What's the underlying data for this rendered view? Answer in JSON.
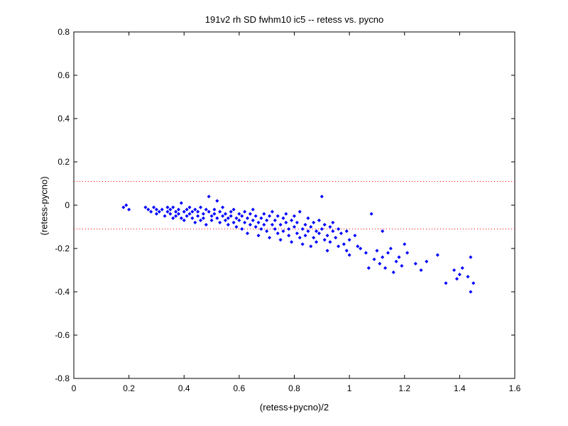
{
  "chart_data": {
    "type": "scatter",
    "title": "191v2 rh SD fwhm10 ic5 -- retess vs. pycno",
    "xlabel": "(retess+pycno)/2",
    "ylabel": "(retess-pycno)",
    "xlim": [
      0,
      1.6
    ],
    "ylim": [
      -0.8,
      0.8
    ],
    "xticks": [
      0,
      0.2,
      0.4,
      0.6,
      0.8,
      1,
      1.2,
      1.4,
      1.6
    ],
    "yticks": [
      -0.8,
      -0.6,
      -0.4,
      -0.2,
      0,
      0.2,
      0.4,
      0.6,
      0.8
    ],
    "xtick_labels": [
      "0",
      "0.2",
      "0.4",
      "0.6",
      "0.8",
      "1",
      "1.2",
      "1.4",
      "1.6"
    ],
    "ytick_labels": [
      "-0.8",
      "-0.6",
      "-0.4",
      "-0.2",
      "0",
      "0.2",
      "0.4",
      "0.6",
      "0.8"
    ],
    "grid": false,
    "point_color": "#0000ff",
    "reference_line_color": "#ff0000",
    "reference_lines_y": [
      0.11,
      -0.11
    ],
    "series": [
      {
        "points": [
          [
            0.18,
            -0.01
          ],
          [
            0.19,
            0.0
          ],
          [
            0.2,
            -0.02
          ],
          [
            0.26,
            -0.01
          ],
          [
            0.27,
            -0.02
          ],
          [
            0.28,
            -0.03
          ],
          [
            0.29,
            -0.01
          ],
          [
            0.3,
            -0.02
          ],
          [
            0.3,
            -0.04
          ],
          [
            0.31,
            -0.03
          ],
          [
            0.32,
            -0.02
          ],
          [
            0.33,
            -0.05
          ],
          [
            0.34,
            -0.01
          ],
          [
            0.34,
            -0.03
          ],
          [
            0.35,
            -0.04
          ],
          [
            0.35,
            -0.02
          ],
          [
            0.36,
            -0.06
          ],
          [
            0.36,
            -0.01
          ],
          [
            0.37,
            -0.03
          ],
          [
            0.37,
            -0.05
          ],
          [
            0.38,
            -0.02
          ],
          [
            0.38,
            -0.04
          ],
          [
            0.39,
            0.01
          ],
          [
            0.39,
            -0.06
          ],
          [
            0.4,
            -0.03
          ],
          [
            0.4,
            -0.07
          ],
          [
            0.41,
            -0.02
          ],
          [
            0.41,
            -0.05
          ],
          [
            0.42,
            -0.04
          ],
          [
            0.42,
            -0.01
          ],
          [
            0.43,
            -0.06
          ],
          [
            0.43,
            -0.03
          ],
          [
            0.44,
            -0.08
          ],
          [
            0.44,
            -0.02
          ],
          [
            0.45,
            -0.05
          ],
          [
            0.45,
            -0.03
          ],
          [
            0.46,
            -0.07
          ],
          [
            0.46,
            -0.01
          ],
          [
            0.47,
            -0.04
          ],
          [
            0.47,
            -0.06
          ],
          [
            0.48,
            -0.02
          ],
          [
            0.48,
            -0.09
          ],
          [
            0.49,
            0.04
          ],
          [
            0.49,
            -0.03
          ],
          [
            0.5,
            -0.05
          ],
          [
            0.5,
            -0.07
          ],
          [
            0.51,
            -0.02
          ],
          [
            0.51,
            -0.04
          ],
          [
            0.52,
            -0.06
          ],
          [
            0.52,
            0.02
          ],
          [
            0.53,
            -0.03
          ],
          [
            0.53,
            -0.08
          ],
          [
            0.54,
            -0.05
          ],
          [
            0.54,
            -0.01
          ],
          [
            0.55,
            -0.07
          ],
          [
            0.55,
            -0.04
          ],
          [
            0.56,
            -0.06
          ],
          [
            0.56,
            -0.09
          ],
          [
            0.57,
            -0.03
          ],
          [
            0.57,
            -0.05
          ],
          [
            0.58,
            -0.08
          ],
          [
            0.58,
            -0.02
          ],
          [
            0.59,
            -0.06
          ],
          [
            0.59,
            -0.1
          ],
          [
            0.6,
            -0.04
          ],
          [
            0.6,
            -0.07
          ],
          [
            0.61,
            -0.05
          ],
          [
            0.61,
            -0.11
          ],
          [
            0.62,
            -0.03
          ],
          [
            0.62,
            -0.08
          ],
          [
            0.63,
            -0.06
          ],
          [
            0.63,
            -0.13
          ],
          [
            0.64,
            -0.04
          ],
          [
            0.64,
            -0.09
          ],
          [
            0.65,
            -0.07
          ],
          [
            0.65,
            -0.02
          ],
          [
            0.66,
            -0.1
          ],
          [
            0.66,
            -0.05
          ],
          [
            0.67,
            -0.08
          ],
          [
            0.67,
            -0.14
          ],
          [
            0.68,
            -0.06
          ],
          [
            0.68,
            -0.11
          ],
          [
            0.69,
            -0.04
          ],
          [
            0.69,
            -0.09
          ],
          [
            0.7,
            -0.12
          ],
          [
            0.7,
            -0.07
          ],
          [
            0.71,
            -0.05
          ],
          [
            0.71,
            -0.15
          ],
          [
            0.72,
            -0.09
          ],
          [
            0.72,
            -0.03
          ],
          [
            0.73,
            -0.11
          ],
          [
            0.73,
            -0.07
          ],
          [
            0.74,
            -0.13
          ],
          [
            0.74,
            -0.05
          ],
          [
            0.75,
            -0.09
          ],
          [
            0.75,
            -0.16
          ],
          [
            0.76,
            -0.06
          ],
          [
            0.76,
            -0.12
          ],
          [
            0.77,
            -0.08
          ],
          [
            0.77,
            -0.04
          ],
          [
            0.78,
            -0.11
          ],
          [
            0.78,
            -0.14
          ],
          [
            0.79,
            -0.07
          ],
          [
            0.79,
            -0.17
          ],
          [
            0.8,
            -0.1
          ],
          [
            0.8,
            -0.05
          ],
          [
            0.81,
            -0.13
          ],
          [
            0.81,
            -0.08
          ],
          [
            0.82,
            -0.15
          ],
          [
            0.82,
            -0.03
          ],
          [
            0.83,
            -0.11
          ],
          [
            0.83,
            -0.18
          ],
          [
            0.84,
            -0.09
          ],
          [
            0.84,
            -0.14
          ],
          [
            0.85,
            -0.06
          ],
          [
            0.85,
            -0.12
          ],
          [
            0.86,
            -0.1
          ],
          [
            0.86,
            -0.19
          ],
          [
            0.87,
            -0.08
          ],
          [
            0.87,
            -0.15
          ],
          [
            0.88,
            -0.12
          ],
          [
            0.88,
            -0.17
          ],
          [
            0.89,
            -0.07
          ],
          [
            0.89,
            -0.13
          ],
          [
            0.9,
            0.04
          ],
          [
            0.9,
            -0.11
          ],
          [
            0.91,
            -0.16
          ],
          [
            0.91,
            -0.09
          ],
          [
            0.92,
            -0.14
          ],
          [
            0.92,
            -0.21
          ],
          [
            0.93,
            -0.1
          ],
          [
            0.93,
            -0.17
          ],
          [
            0.94,
            -0.12
          ],
          [
            0.94,
            -0.08
          ],
          [
            0.95,
            -0.15
          ],
          [
            0.96,
            -0.11
          ],
          [
            0.96,
            -0.19
          ],
          [
            0.97,
            -0.13
          ],
          [
            0.98,
            -0.18
          ],
          [
            0.99,
            -0.12
          ],
          [
            0.99,
            -0.21
          ],
          [
            1.0,
            -0.16
          ],
          [
            1.0,
            -0.23
          ],
          [
            1.02,
            -0.14
          ],
          [
            1.03,
            -0.19
          ],
          [
            1.04,
            -0.2
          ],
          [
            1.06,
            -0.22
          ],
          [
            1.07,
            -0.29
          ],
          [
            1.08,
            -0.04
          ],
          [
            1.09,
            -0.25
          ],
          [
            1.1,
            -0.21
          ],
          [
            1.11,
            -0.27
          ],
          [
            1.12,
            -0.12
          ],
          [
            1.12,
            -0.24
          ],
          [
            1.13,
            -0.29
          ],
          [
            1.14,
            -0.22
          ],
          [
            1.15,
            -0.2
          ],
          [
            1.16,
            -0.31
          ],
          [
            1.17,
            -0.26
          ],
          [
            1.18,
            -0.24
          ],
          [
            1.19,
            -0.28
          ],
          [
            1.2,
            -0.18
          ],
          [
            1.21,
            -0.22
          ],
          [
            1.24,
            -0.27
          ],
          [
            1.26,
            -0.3
          ],
          [
            1.28,
            -0.26
          ],
          [
            1.32,
            -0.23
          ],
          [
            1.35,
            -0.36
          ],
          [
            1.38,
            -0.3
          ],
          [
            1.39,
            -0.34
          ],
          [
            1.4,
            -0.32
          ],
          [
            1.41,
            -0.29
          ],
          [
            1.43,
            -0.33
          ],
          [
            1.44,
            -0.24
          ],
          [
            1.44,
            -0.4
          ],
          [
            1.45,
            -0.36
          ]
        ]
      }
    ]
  }
}
